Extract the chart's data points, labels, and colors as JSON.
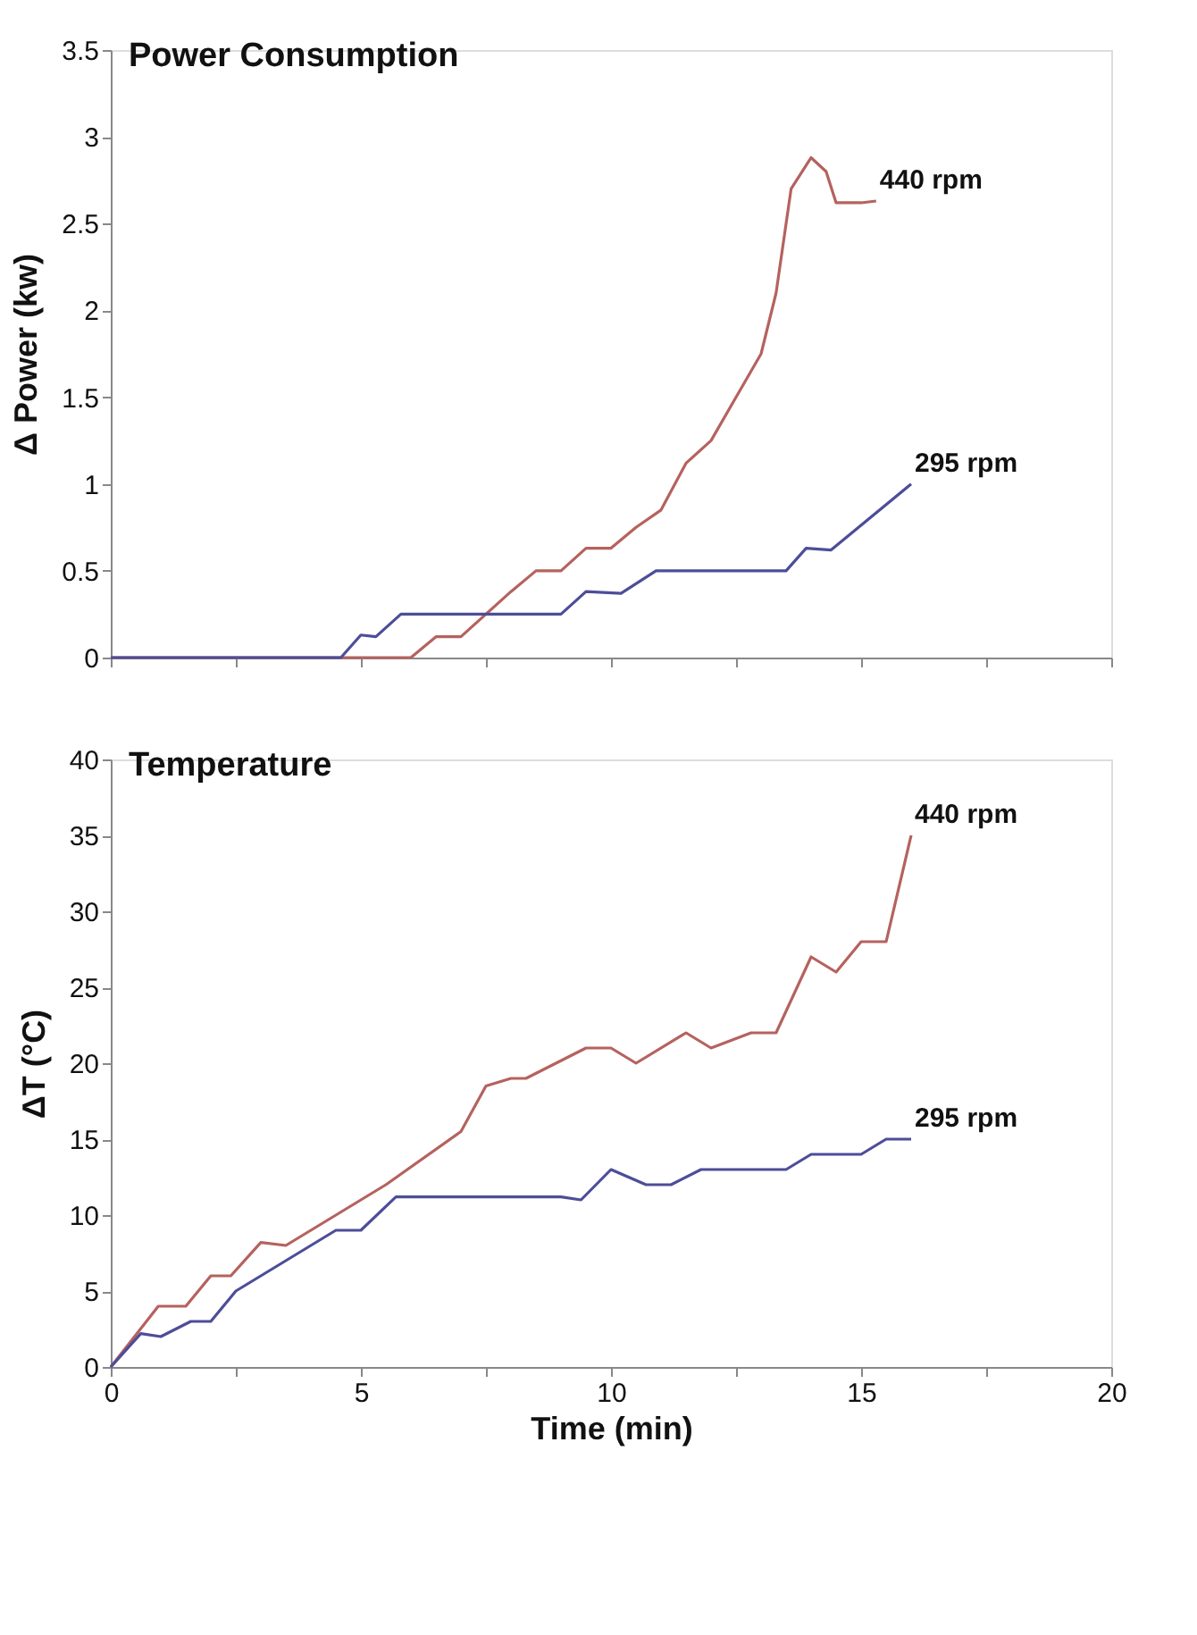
{
  "chart_data": [
    {
      "type": "line",
      "title": "Power Consumption",
      "ylabel": "Δ Power (kw)",
      "xlim": [
        0,
        20
      ],
      "ylim": [
        0,
        3.5
      ],
      "xticks": [
        0,
        {
          "value": 2.5,
          "label": null
        },
        {
          "value": 5,
          "label": null
        },
        {
          "value": 7.5,
          "label": null
        },
        {
          "value": 10,
          "label": null
        },
        {
          "value": 12.5,
          "label": null
        },
        {
          "value": 15,
          "label": null
        },
        {
          "value": 17.5,
          "label": null
        },
        {
          "value": 20,
          "label": null
        }
      ],
      "yticks": [
        0,
        0.5,
        1,
        1.5,
        2,
        2.5,
        3,
        3.5
      ],
      "tick_labels": "y",
      "grid": false,
      "marker": "none",
      "line_style": "solid",
      "legend": false,
      "series": [
        {
          "name": "440 rpm",
          "color": "#b5625e",
          "x": [
            0,
            6.0,
            6.5,
            7.0,
            7.5,
            8.0,
            8.5,
            9.0,
            9.5,
            10.0,
            10.5,
            11.0,
            11.5,
            12.0,
            12.5,
            13.0,
            13.3,
            13.6,
            14.0,
            14.3,
            14.5,
            15.0,
            15.3
          ],
          "values": [
            0,
            0,
            0.12,
            0.12,
            0.25,
            0.38,
            0.5,
            0.5,
            0.63,
            0.63,
            0.75,
            0.85,
            1.12,
            1.25,
            1.5,
            1.75,
            2.1,
            2.7,
            2.88,
            2.8,
            2.62,
            2.62,
            2.63
          ]
        },
        {
          "name": "295 rpm",
          "color": "#4d4d99",
          "x": [
            0,
            4.6,
            5.0,
            5.3,
            5.8,
            9.0,
            9.5,
            10.2,
            10.9,
            13.5,
            13.9,
            14.4,
            16.0
          ],
          "values": [
            0,
            0,
            0.13,
            0.12,
            0.25,
            0.25,
            0.38,
            0.37,
            0.5,
            0.5,
            0.63,
            0.62,
            1.0
          ]
        }
      ]
    },
    {
      "type": "line",
      "title": "Temperature",
      "xlabel": "Time (min)",
      "ylabel": "ΔT (°C)",
      "xlim": [
        0,
        20
      ],
      "ylim": [
        0,
        40
      ],
      "xticks": [
        0,
        {
          "value": 2.5,
          "label": null
        },
        5,
        {
          "value": 7.5,
          "label": null
        },
        10,
        {
          "value": 12.5,
          "label": null
        },
        15,
        {
          "value": 17.5,
          "label": null
        },
        20
      ],
      "yticks": [
        0,
        5,
        10,
        15,
        20,
        25,
        30,
        35,
        40
      ],
      "grid": false,
      "marker": "none",
      "line_style": "solid",
      "legend": false,
      "series": [
        {
          "name": "440 rpm",
          "color": "#b5625e",
          "x": [
            0,
            0.95,
            1.5,
            2.0,
            2.4,
            3.0,
            3.5,
            5.5,
            7.0,
            7.5,
            8.0,
            8.3,
            9.5,
            10.0,
            10.5,
            11.5,
            12.0,
            12.8,
            13.3,
            14.0,
            14.5,
            15.0,
            15.5,
            16.0
          ],
          "values": [
            0,
            4,
            4,
            6,
            6,
            8.2,
            8,
            12,
            15.5,
            18.5,
            19,
            19,
            21,
            21,
            20,
            22,
            21,
            22,
            22,
            27,
            26,
            28,
            28,
            35
          ]
        },
        {
          "name": "295 rpm",
          "color": "#4d4d99",
          "x": [
            0,
            0.6,
            1.0,
            1.6,
            2.0,
            2.5,
            3.0,
            4.5,
            5.0,
            5.7,
            9.0,
            9.4,
            10.0,
            10.7,
            11.2,
            11.8,
            13.2,
            13.5,
            14.0,
            15.0,
            15.5,
            16.0
          ],
          "values": [
            0,
            2.2,
            2,
            3,
            3,
            5,
            6,
            9,
            9,
            11.2,
            11.2,
            11,
            13,
            12,
            12,
            13,
            13,
            13,
            14,
            14,
            15,
            15
          ]
        }
      ]
    }
  ]
}
